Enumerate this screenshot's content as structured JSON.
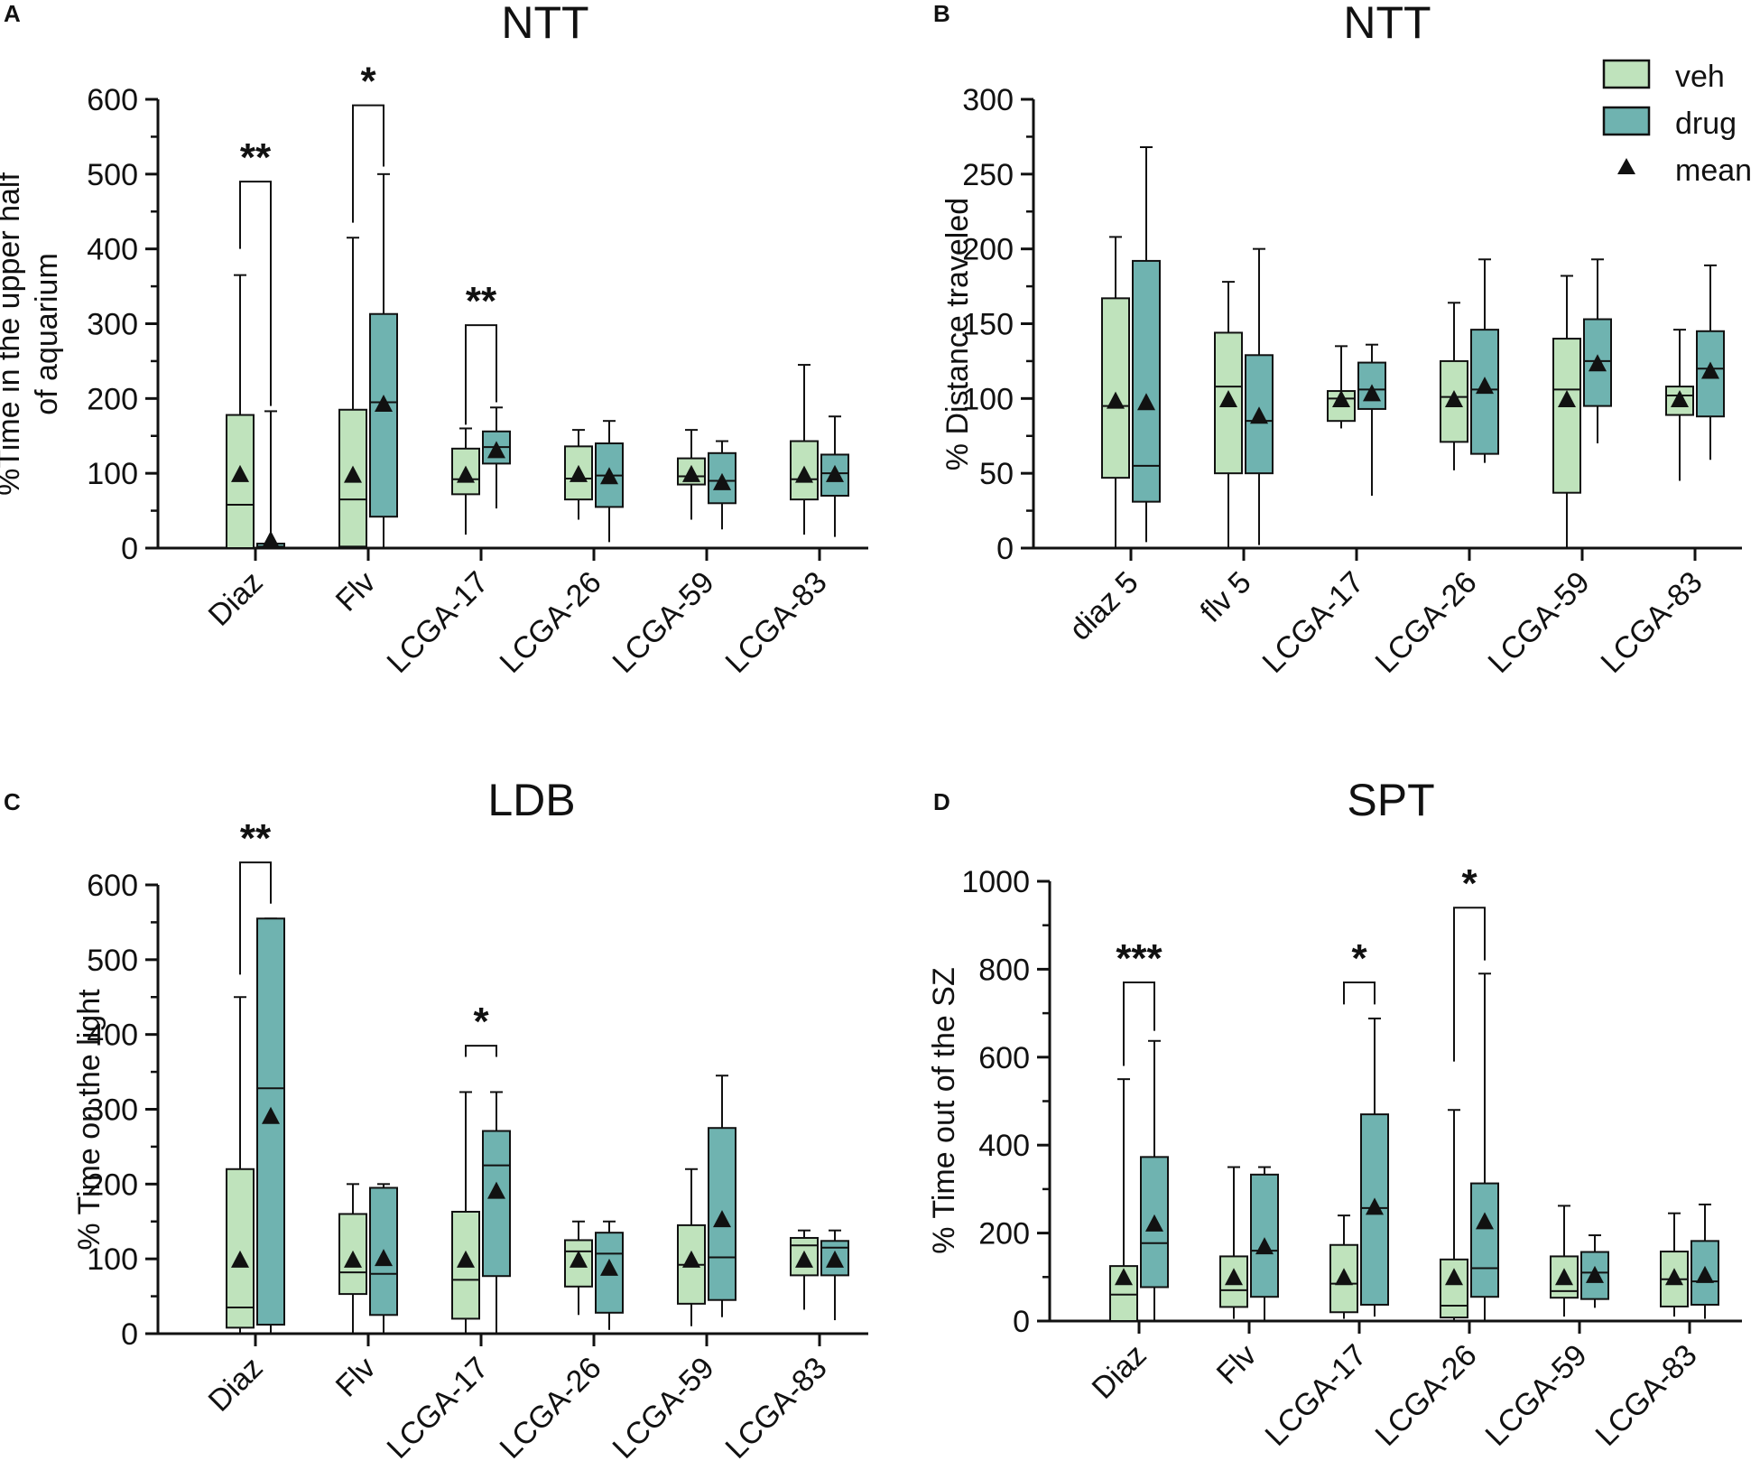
{
  "colors": {
    "veh": "#bfe3bc",
    "drug": "#6fb3b0",
    "stroke": "#111111"
  },
  "legend": {
    "veh": "veh",
    "drug": "drug",
    "mean": "mean"
  },
  "chart_data": [
    {
      "panel": "A",
      "type": "box",
      "title": "NTT",
      "ylabel_lines": [
        "%Time in the upper half",
        "of aquarium"
      ],
      "ylim": [
        0,
        600
      ],
      "yticks": [
        0,
        100,
        200,
        300,
        400,
        500,
        600
      ],
      "categories": [
        "Diaz",
        "Flv",
        "LCGA-17",
        "LCGA-26",
        "LCGA-59",
        "LCGA-83"
      ],
      "series": [
        {
          "name": "veh",
          "boxes": [
            {
              "min": 0,
              "q1": 0,
              "median": 58,
              "q3": 178,
              "max": 365,
              "mean": 98
            },
            {
              "min": 0,
              "q1": 2,
              "median": 65,
              "q3": 185,
              "max": 415,
              "mean": 97
            },
            {
              "min": 18,
              "q1": 72,
              "median": 92,
              "q3": 133,
              "max": 160,
              "mean": 97
            },
            {
              "min": 38,
              "q1": 65,
              "median": 93,
              "q3": 136,
              "max": 158,
              "mean": 98
            },
            {
              "min": 38,
              "q1": 85,
              "median": 96,
              "q3": 120,
              "max": 158,
              "mean": 98
            },
            {
              "min": 18,
              "q1": 65,
              "median": 92,
              "q3": 143,
              "max": 245,
              "mean": 97
            }
          ]
        },
        {
          "name": "drug",
          "boxes": [
            {
              "min": 0,
              "q1": 0,
              "median": 2,
              "q3": 6,
              "max": 183,
              "mean": 10
            },
            {
              "min": 0,
              "q1": 42,
              "median": 195,
              "q3": 313,
              "max": 500,
              "mean": 192
            },
            {
              "min": 53,
              "q1": 113,
              "median": 135,
              "q3": 156,
              "max": 188,
              "mean": 130
            },
            {
              "min": 8,
              "q1": 55,
              "median": 97,
              "q3": 140,
              "max": 170,
              "mean": 95
            },
            {
              "min": 25,
              "q1": 60,
              "median": 90,
              "q3": 127,
              "max": 143,
              "mean": 87
            },
            {
              "min": 15,
              "q1": 70,
              "median": 100,
              "q3": 125,
              "max": 176,
              "mean": 98
            }
          ]
        }
      ],
      "significance": [
        {
          "category": 0,
          "label": "**",
          "left_y": 400,
          "right_y": 190,
          "bar_y": 490
        },
        {
          "category": 1,
          "label": "*",
          "left_y": 435,
          "right_y": 510,
          "bar_y": 592
        },
        {
          "category": 2,
          "label": "**",
          "left_y": 165,
          "right_y": 195,
          "bar_y": 298
        }
      ]
    },
    {
      "panel": "B",
      "type": "box",
      "title": "NTT",
      "ylabel_lines": [
        "% Distance traveled"
      ],
      "ylim": [
        0,
        300
      ],
      "yticks": [
        0,
        50,
        100,
        150,
        200,
        250,
        300
      ],
      "categories": [
        "diaz 5",
        "flv 5",
        "LCGA-17",
        "LCGA-26",
        "LCGA-59",
        "LCGA-83"
      ],
      "series": [
        {
          "name": "veh",
          "boxes": [
            {
              "min": 0,
              "q1": 47,
              "median": 95,
              "q3": 167,
              "max": 208,
              "mean": 98
            },
            {
              "min": 0,
              "q1": 50,
              "median": 108,
              "q3": 144,
              "max": 178,
              "mean": 99
            },
            {
              "min": 80,
              "q1": 85,
              "median": 100,
              "q3": 105,
              "max": 135,
              "mean": 99
            },
            {
              "min": 52,
              "q1": 71,
              "median": 101,
              "q3": 125,
              "max": 164,
              "mean": 99
            },
            {
              "min": 0,
              "q1": 37,
              "median": 106,
              "q3": 140,
              "max": 182,
              "mean": 99
            },
            {
              "min": 45,
              "q1": 89,
              "median": 102,
              "q3": 108,
              "max": 146,
              "mean": 99
            }
          ]
        },
        {
          "name": "drug",
          "boxes": [
            {
              "min": 4,
              "q1": 31,
              "median": 55,
              "q3": 192,
              "max": 268,
              "mean": 97
            },
            {
              "min": 2,
              "q1": 50,
              "median": 85,
              "q3": 129,
              "max": 200,
              "mean": 88
            },
            {
              "min": 35,
              "q1": 93,
              "median": 106,
              "q3": 124,
              "max": 136,
              "mean": 103
            },
            {
              "min": 57,
              "q1": 63,
              "median": 106,
              "q3": 146,
              "max": 193,
              "mean": 108
            },
            {
              "min": 70,
              "q1": 95,
              "median": 125,
              "q3": 153,
              "max": 193,
              "mean": 123
            },
            {
              "min": 59,
              "q1": 88,
              "median": 120,
              "q3": 145,
              "max": 189,
              "mean": 118
            }
          ]
        }
      ],
      "significance": []
    },
    {
      "panel": "C",
      "type": "box",
      "title": "LDB",
      "ylabel_lines": [
        "% Time on the light"
      ],
      "ylim": [
        0,
        600
      ],
      "yticks": [
        0,
        100,
        200,
        300,
        400,
        500,
        600
      ],
      "categories": [
        "Diaz",
        "Flv",
        "LCGA-17",
        "LCGA-26",
        "LCGA-59",
        "LCGA-83"
      ],
      "series": [
        {
          "name": "veh",
          "boxes": [
            {
              "min": 0,
              "q1": 8,
              "median": 35,
              "q3": 220,
              "max": 450,
              "mean": 98
            },
            {
              "min": 0,
              "q1": 53,
              "median": 82,
              "q3": 160,
              "max": 200,
              "mean": 98
            },
            {
              "min": 0,
              "q1": 20,
              "median": 72,
              "q3": 163,
              "max": 323,
              "mean": 98
            },
            {
              "min": 25,
              "q1": 63,
              "median": 110,
              "q3": 125,
              "max": 150,
              "mean": 98
            },
            {
              "min": 10,
              "q1": 40,
              "median": 92,
              "q3": 145,
              "max": 220,
              "mean": 98
            },
            {
              "min": 32,
              "q1": 78,
              "median": 118,
              "q3": 128,
              "max": 138,
              "mean": 98
            }
          ]
        },
        {
          "name": "drug",
          "boxes": [
            {
              "min": 0,
              "q1": 12,
              "median": 328,
              "q3": 555,
              "max": 555,
              "mean": 290
            },
            {
              "min": 0,
              "q1": 25,
              "median": 80,
              "q3": 195,
              "max": 200,
              "mean": 100
            },
            {
              "min": 0,
              "q1": 77,
              "median": 225,
              "q3": 271,
              "max": 323,
              "mean": 190
            },
            {
              "min": 5,
              "q1": 28,
              "median": 107,
              "q3": 135,
              "max": 150,
              "mean": 87
            },
            {
              "min": 22,
              "q1": 45,
              "median": 102,
              "q3": 275,
              "max": 345,
              "mean": 152
            },
            {
              "min": 18,
              "q1": 78,
              "median": 115,
              "q3": 124,
              "max": 138,
              "mean": 98
            }
          ]
        }
      ],
      "significance": [
        {
          "category": 0,
          "label": "**",
          "left_y": 480,
          "right_y": 575,
          "bar_y": 630
        },
        {
          "category": 2,
          "label": "*",
          "left_y": 370,
          "right_y": 370,
          "bar_y": 385
        }
      ]
    },
    {
      "panel": "D",
      "type": "box",
      "title": "SPT",
      "ylabel_lines": [
        "% Time out of the SZ"
      ],
      "ylim": [
        0,
        1000
      ],
      "yticks": [
        0,
        200,
        400,
        600,
        800,
        1000
      ],
      "categories": [
        "Diaz",
        "Flv",
        "LCGA-17",
        "LCGA-26",
        "LCGA-59",
        "LCGA-83"
      ],
      "series": [
        {
          "name": "veh",
          "boxes": [
            {
              "min": 0,
              "q1": 0,
              "median": 60,
              "q3": 125,
              "max": 550,
              "mean": 98
            },
            {
              "min": 5,
              "q1": 32,
              "median": 70,
              "q3": 147,
              "max": 350,
              "mean": 98
            },
            {
              "min": 5,
              "q1": 20,
              "median": 85,
              "q3": 173,
              "max": 240,
              "mean": 98
            },
            {
              "min": 0,
              "q1": 8,
              "median": 35,
              "q3": 140,
              "max": 480,
              "mean": 98
            },
            {
              "min": 10,
              "q1": 53,
              "median": 68,
              "q3": 147,
              "max": 262,
              "mean": 98
            },
            {
              "min": 10,
              "q1": 33,
              "median": 95,
              "q3": 158,
              "max": 245,
              "mean": 98
            }
          ]
        },
        {
          "name": "drug",
          "boxes": [
            {
              "min": 0,
              "q1": 77,
              "median": 177,
              "q3": 373,
              "max": 637,
              "mean": 220
            },
            {
              "min": 0,
              "q1": 55,
              "median": 160,
              "q3": 333,
              "max": 350,
              "mean": 168
            },
            {
              "min": 10,
              "q1": 37,
              "median": 257,
              "q3": 470,
              "max": 688,
              "mean": 258
            },
            {
              "min": 3,
              "q1": 55,
              "median": 120,
              "q3": 313,
              "max": 790,
              "mean": 225
            },
            {
              "min": 30,
              "q1": 50,
              "median": 110,
              "q3": 157,
              "max": 195,
              "mean": 103
            },
            {
              "min": 5,
              "q1": 37,
              "median": 90,
              "q3": 182,
              "max": 265,
              "mean": 103
            }
          ]
        }
      ],
      "significance": [
        {
          "category": 0,
          "label": "***",
          "left_y": 580,
          "right_y": 660,
          "bar_y": 770
        },
        {
          "category": 2,
          "label": "*",
          "left_y": 720,
          "right_y": 720,
          "bar_y": 770
        },
        {
          "category": 3,
          "label": "*",
          "left_y": 590,
          "right_y": 820,
          "bar_y": 940
        }
      ]
    }
  ]
}
